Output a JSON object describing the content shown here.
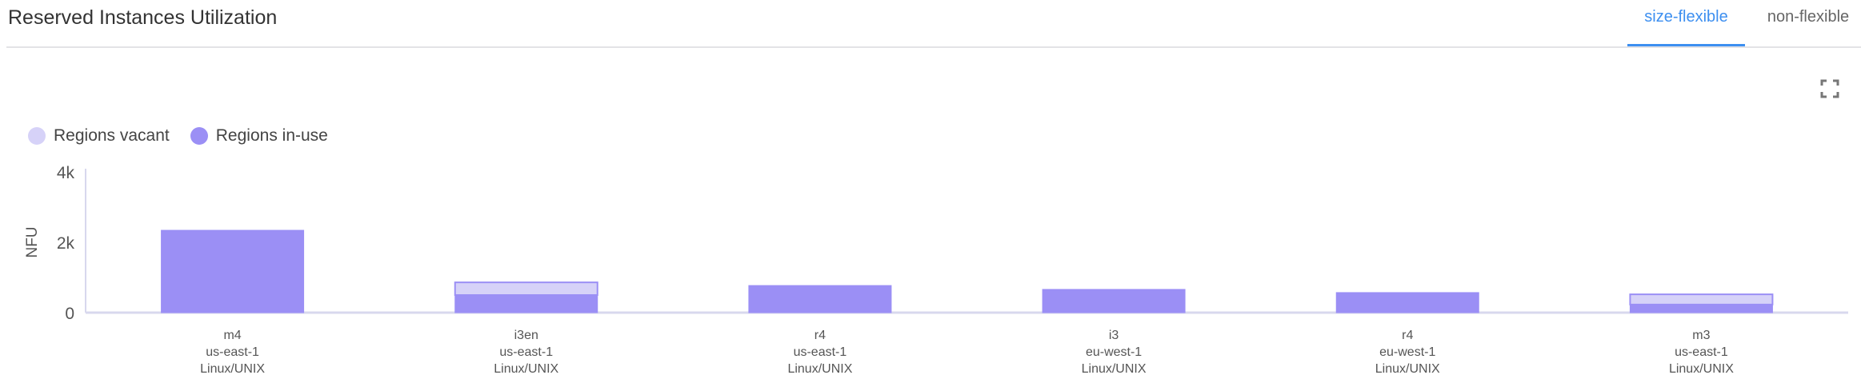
{
  "header": {
    "title": "Reserved Instances Utilization",
    "tabs": [
      {
        "label": "size-flexible",
        "active": true
      },
      {
        "label": "non-flexible",
        "active": false
      }
    ],
    "expand_icon": "fullscreen-icon"
  },
  "colors": {
    "accent": "#3d8ff0",
    "in_use": "#9b8ff5",
    "vacant": "#d6d2f8",
    "axis": "#d8d8ee"
  },
  "chart_data": {
    "type": "bar",
    "stacked": true,
    "ylabel": "NFU",
    "xlabel": "",
    "ylim": [
      0,
      4000
    ],
    "yticks": [
      0,
      2000,
      4000
    ],
    "ytick_labels": [
      "0",
      "2k",
      "4k"
    ],
    "legend_position": "top-left",
    "grid": false,
    "categories": [
      [
        "m4",
        "us-east-1",
        "Linux/UNIX"
      ],
      [
        "i3en",
        "us-east-1",
        "Linux/UNIX"
      ],
      [
        "r4",
        "us-east-1",
        "Linux/UNIX"
      ],
      [
        "i3",
        "eu-west-1",
        "Linux/UNIX"
      ],
      [
        "r4",
        "eu-west-1",
        "Linux/UNIX"
      ],
      [
        "m3",
        "us-east-1",
        "Linux/UNIX"
      ]
    ],
    "series": [
      {
        "name": "Regions in-use",
        "color": "#9b8ff5",
        "values": [
          2340,
          500,
          770,
          660,
          570,
          230
        ]
      },
      {
        "name": "Regions vacant",
        "color": "#d6d2f8",
        "values": [
          0,
          360,
          0,
          0,
          0,
          290
        ]
      }
    ],
    "legend": [
      "Regions vacant",
      "Regions in-use"
    ]
  }
}
